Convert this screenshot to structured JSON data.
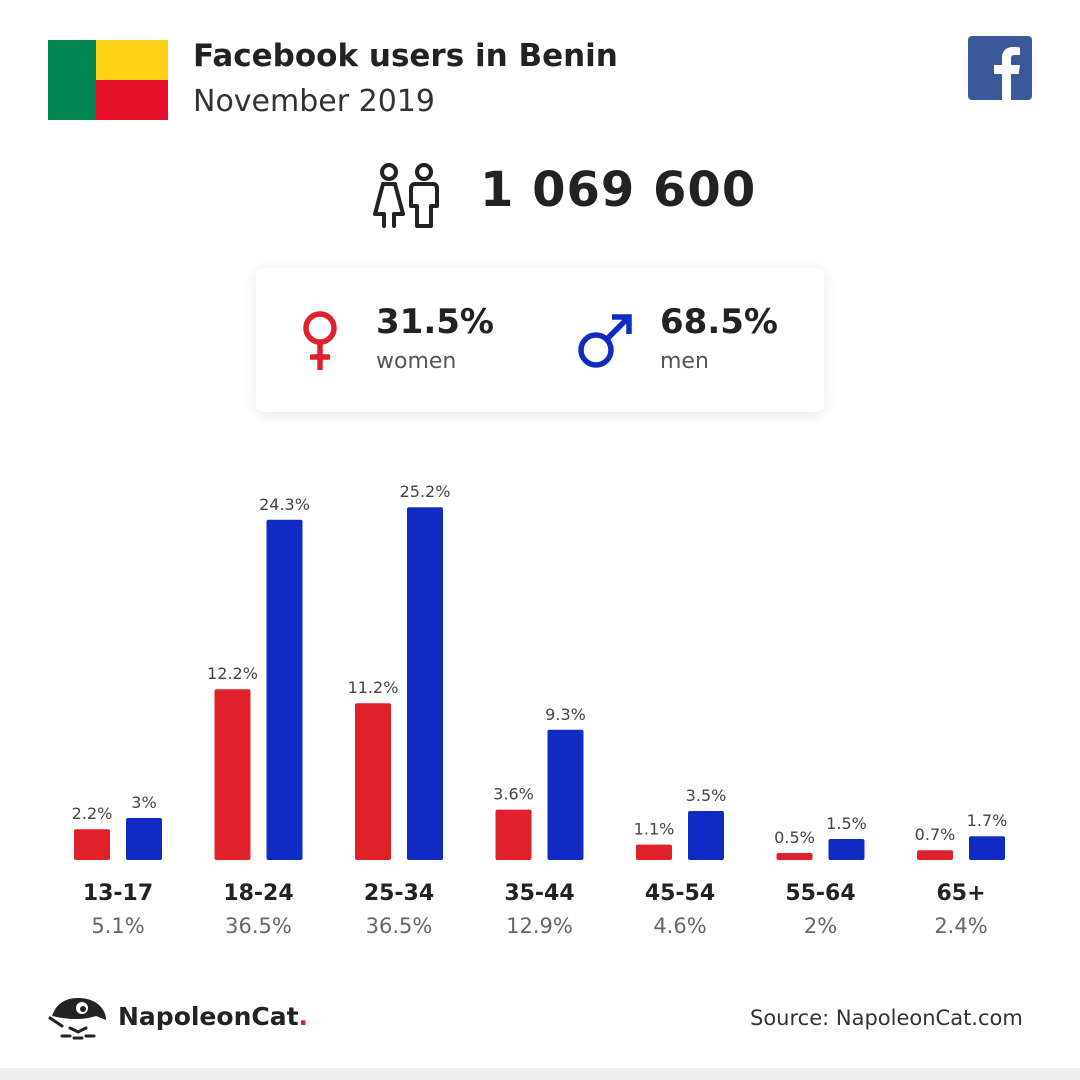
{
  "header": {
    "title": "Facebook users in Benin",
    "subtitle": "November 2019"
  },
  "total_users": "1 069 600",
  "gender": {
    "women_pct": "31.5%",
    "women_label": "women",
    "men_pct": "68.5%",
    "men_label": "men"
  },
  "colors": {
    "women": "#e0202a",
    "men": "#0f2bc2",
    "flag_green": "#008751",
    "flag_yellow": "#fcd116",
    "flag_red": "#e8112d",
    "facebook": "#3b5998"
  },
  "icons": [
    "facebook-icon",
    "users-icon",
    "female-icon",
    "male-icon",
    "napoleoncat-logo-icon"
  ],
  "chart_data": {
    "type": "bar",
    "categories": [
      "13-17",
      "18-24",
      "25-34",
      "35-44",
      "45-54",
      "55-64",
      "65+"
    ],
    "category_totals": [
      "5.1%",
      "36.5%",
      "36.5%",
      "12.9%",
      "4.6%",
      "2%",
      "2.4%"
    ],
    "series": [
      {
        "name": "women",
        "values": [
          2.2,
          12.2,
          11.2,
          3.6,
          1.1,
          0.5,
          0.7
        ],
        "labels": [
          "2.2%",
          "12.2%",
          "11.2%",
          "3.6%",
          "1.1%",
          "0.5%",
          "0.7%"
        ]
      },
      {
        "name": "men",
        "values": [
          3,
          24.3,
          25.2,
          9.3,
          3.5,
          1.5,
          1.7
        ],
        "labels": [
          "3%",
          "24.3%",
          "25.2%",
          "9.3%",
          "3.5%",
          "1.5%",
          "1.7%"
        ]
      }
    ]
  },
  "footer": {
    "brand": "NapoleonCat",
    "brand_dot": ".",
    "source": "Source: NapoleonCat.com"
  }
}
